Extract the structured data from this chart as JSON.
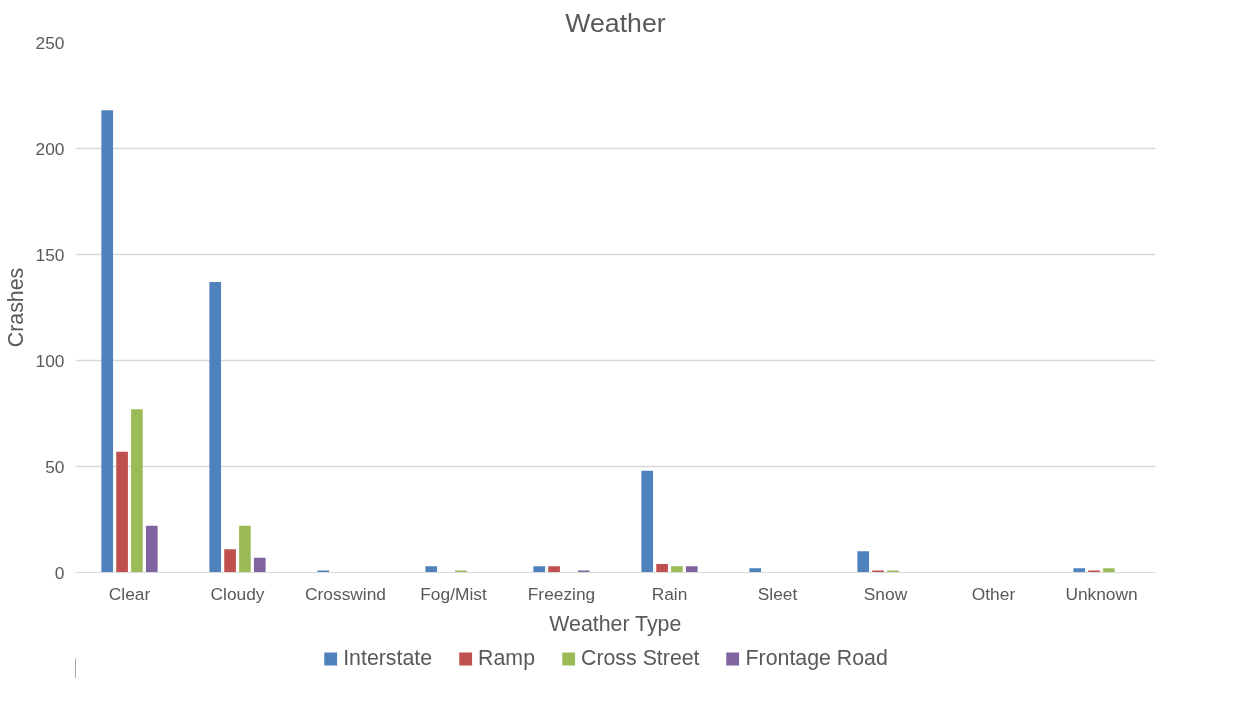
{
  "chart_data": {
    "type": "bar",
    "title": "Weather",
    "xlabel": "Weather Type",
    "ylabel": "Crashes",
    "categories": [
      "Clear",
      "Cloudy",
      "Crosswind",
      "Fog/Mist",
      "Freezing",
      "Rain",
      "Sleet",
      "Snow",
      "Other",
      "Unknown"
    ],
    "series": [
      {
        "name": "Interstate",
        "color": "#4f81bd",
        "values": [
          218,
          137,
          1,
          3,
          3,
          48,
          2,
          10,
          0,
          2
        ]
      },
      {
        "name": "Ramp",
        "color": "#c0504d",
        "values": [
          57,
          11,
          0,
          0,
          3,
          4,
          0,
          1,
          0,
          1
        ]
      },
      {
        "name": "Cross Street",
        "color": "#9bbb59",
        "values": [
          77,
          22,
          0,
          1,
          0,
          3,
          0,
          1,
          0,
          2
        ]
      },
      {
        "name": "Frontage Road",
        "color": "#8064a2",
        "values": [
          22,
          7,
          0,
          0,
          1,
          3,
          0,
          0,
          0,
          0
        ]
      }
    ],
    "ylim": [
      0,
      250
    ],
    "yticks": [
      0,
      50,
      100,
      150,
      200,
      250
    ],
    "grid": "y",
    "legend": "bottom"
  }
}
